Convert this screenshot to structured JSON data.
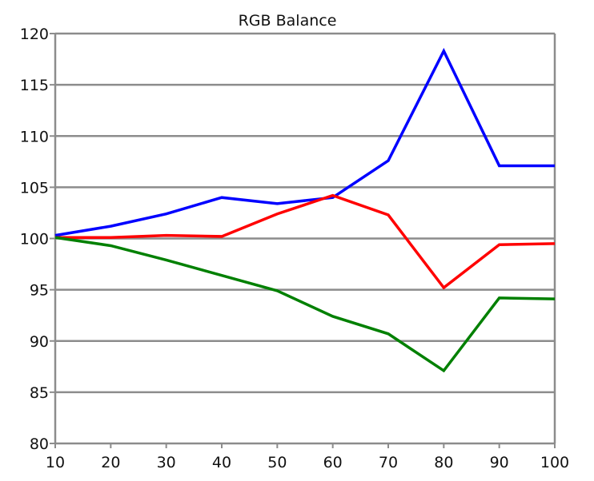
{
  "chart_data": {
    "type": "line",
    "title": "RGB Balance",
    "xlabel": "",
    "ylabel": "",
    "x": [
      10,
      20,
      30,
      40,
      50,
      60,
      70,
      80,
      90,
      100
    ],
    "xlim": [
      10,
      100
    ],
    "ylim": [
      80,
      120
    ],
    "x_ticks": [
      10,
      20,
      30,
      40,
      50,
      60,
      70,
      80,
      90,
      100
    ],
    "y_ticks": [
      80,
      85,
      90,
      95,
      100,
      105,
      110,
      115,
      120
    ],
    "grid": "horizontal",
    "legend": "none",
    "series": [
      {
        "color": "#0000ff",
        "values": [
          100.3,
          101.2,
          102.4,
          104.0,
          103.4,
          104.0,
          107.6,
          118.3,
          107.1,
          107.1
        ]
      },
      {
        "color": "#ff0000",
        "values": [
          100.1,
          100.1,
          100.3,
          100.2,
          102.4,
          104.2,
          102.3,
          95.2,
          99.4,
          99.5
        ]
      },
      {
        "color": "#008000",
        "values": [
          100.1,
          99.3,
          97.9,
          96.4,
          94.9,
          92.4,
          90.7,
          87.1,
          94.2,
          94.1
        ]
      }
    ]
  }
}
